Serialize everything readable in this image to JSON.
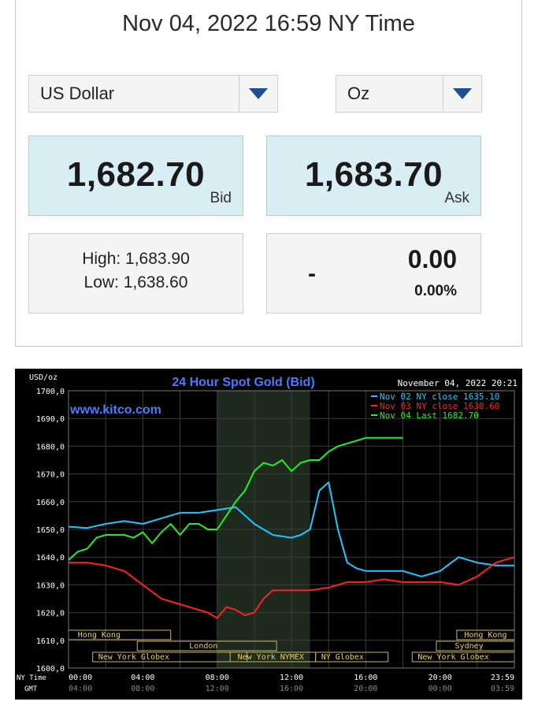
{
  "header": {
    "datetime": "Nov 04, 2022 16:59 NY Time"
  },
  "selectors": {
    "currency": "US Dollar",
    "unit": "Oz",
    "dropdown_color": "#1f4f8f"
  },
  "prices": {
    "bid": "1,682.70",
    "bid_label": "Bid",
    "ask": "1,683.70",
    "ask_label": "Ask",
    "box_color": "#d9edf4"
  },
  "range": {
    "high": "High: 1,683.90",
    "low": "Low: 1,638.60"
  },
  "change": {
    "indicator": "-",
    "value": "0.00",
    "percent": "0.00%"
  },
  "chart_data": {
    "type": "line",
    "title": "24 Hour Spot Gold (Bid)",
    "watermark": "www.kitco.com",
    "timestamp": "November 04, 2022 20:21",
    "unit_label": "USD/oz",
    "ylim": [
      1600,
      1700
    ],
    "yticks": [
      "1700,0",
      "1690,0",
      "1680,0",
      "1670,0",
      "1660,0",
      "1650,0",
      "1640,0",
      "1630,0",
      "1620,0",
      "1610,0",
      "1600,0"
    ],
    "x_row_labels": {
      "ny": "NY Time",
      "gmt": "GMT"
    },
    "xticks_ny": [
      "00:00",
      "04:00",
      "08:00",
      "12:00",
      "16:00",
      "20:00",
      "23:59"
    ],
    "xticks_gmt": [
      "04:00",
      "08:00",
      "12:00",
      "16:00",
      "20:00",
      "00:00",
      "03:59"
    ],
    "legend": [
      {
        "text": "Nov 02 NY close 1635.10",
        "color": "#1ec8ff"
      },
      {
        "text": "Nov 03 NY close 1630.60",
        "color": "#ff2020"
      },
      {
        "text": "Nov 04 Last 1682.70",
        "color": "#22ee22"
      }
    ],
    "sessions": [
      "Hong Kong",
      "London",
      "New York Globex",
      "New York NYMEX",
      "NY Globex",
      "Hong Kong",
      "Sydney",
      "New York Globex"
    ],
    "series": [
      {
        "name": "Nov 02",
        "color": "#1ec8ff",
        "x": [
          0,
          1,
          2,
          3,
          4,
          5,
          6,
          7,
          8,
          9,
          10,
          11,
          12,
          12.5,
          13,
          13.5,
          14,
          14.5,
          15,
          15.5,
          16,
          17,
          18,
          19,
          20,
          21,
          22,
          23,
          23.99
        ],
        "y": [
          1651,
          1650.5,
          1652,
          1653,
          1652,
          1654,
          1656,
          1656,
          1657,
          1658,
          1652,
          1648,
          1647,
          1648,
          1650,
          1664,
          1667,
          1650,
          1638,
          1636,
          1635,
          1635,
          1635,
          1633,
          1635,
          1640,
          1638,
          1637,
          1637
        ]
      },
      {
        "name": "Nov 03",
        "color": "#ff2020",
        "x": [
          0,
          1,
          2,
          3,
          4,
          5,
          6,
          7,
          7.5,
          8,
          8.5,
          9,
          9.5,
          10,
          10.5,
          11,
          12,
          13,
          14,
          15,
          16,
          17,
          18,
          19,
          20,
          21,
          22,
          23,
          23.99
        ],
        "y": [
          1638,
          1638,
          1637,
          1635,
          1630,
          1625,
          1623,
          1621,
          1620,
          1618,
          1622,
          1621,
          1619,
          1620,
          1625,
          1628,
          1628,
          1628,
          1629,
          1631,
          1631,
          1632,
          1631,
          1631,
          1631,
          1630,
          1633,
          1638,
          1640
        ]
      },
      {
        "name": "Nov 04",
        "color": "#22ee22",
        "x": [
          0,
          0.5,
          1,
          1.5,
          2,
          3,
          3.5,
          4,
          4.5,
          5,
          5.5,
          6,
          6.5,
          7,
          7.5,
          8,
          8.5,
          9,
          9.5,
          10,
          10.5,
          11,
          11.5,
          12,
          12.5,
          13,
          13.5,
          14,
          14.5,
          15,
          15.5,
          16,
          17,
          18
        ],
        "y": [
          1639,
          1642,
          1643,
          1647,
          1648,
          1648,
          1647,
          1649,
          1645,
          1649,
          1652,
          1648,
          1652,
          1652,
          1650,
          1650,
          1655,
          1660,
          1664,
          1671,
          1674,
          1673,
          1675,
          1671,
          1674,
          1675,
          1675,
          1678,
          1680,
          1681,
          1682,
          1683,
          1683,
          1683
        ]
      }
    ]
  }
}
